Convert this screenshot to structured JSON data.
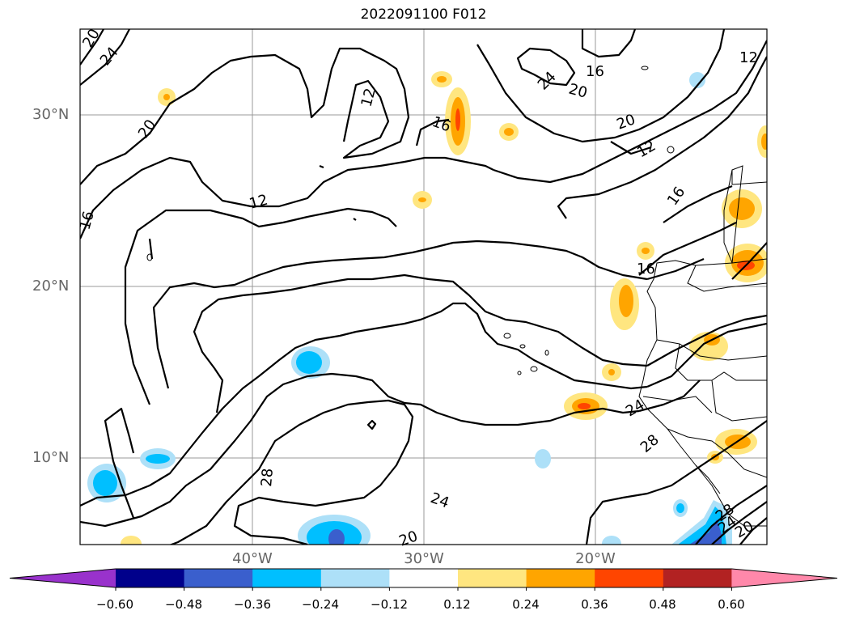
{
  "title": "2022091100 F012",
  "map": {
    "lat_labels": [
      {
        "label": "30°N",
        "lat": 30
      },
      {
        "label": "20°N",
        "lat": 20
      },
      {
        "label": "10°N",
        "lat": 10
      }
    ],
    "lon_labels": [
      {
        "label": "40°W",
        "lon": -40
      },
      {
        "label": "30°W",
        "lon": -30
      },
      {
        "label": "20°W",
        "lon": -20
      }
    ],
    "extent": {
      "lon_min": -50,
      "lon_max": -10,
      "lat_min": 5,
      "lat_max": 35
    },
    "contour_labels": [
      "20",
      "24",
      "20",
      "12",
      "16",
      "24",
      "20",
      "16",
      "12",
      "20",
      "12",
      "16",
      "16",
      "16",
      "12",
      "24",
      "28",
      "28",
      "24",
      "20",
      "28",
      "24",
      "20"
    ]
  },
  "colorbar": {
    "colors": [
      "#9932CC",
      "#00008B",
      "#3A5FCD",
      "#00BFFF",
      "#ADE0F8",
      "#FFFFFF",
      "#FFE680",
      "#FFA500",
      "#FF4500",
      "#B22222",
      "#FF88AA"
    ],
    "tick_labels": [
      "−0.60",
      "−0.48",
      "−0.36",
      "−0.24",
      "−0.12",
      "0.12",
      "0.24",
      "0.36",
      "0.48",
      "0.60"
    ]
  }
}
